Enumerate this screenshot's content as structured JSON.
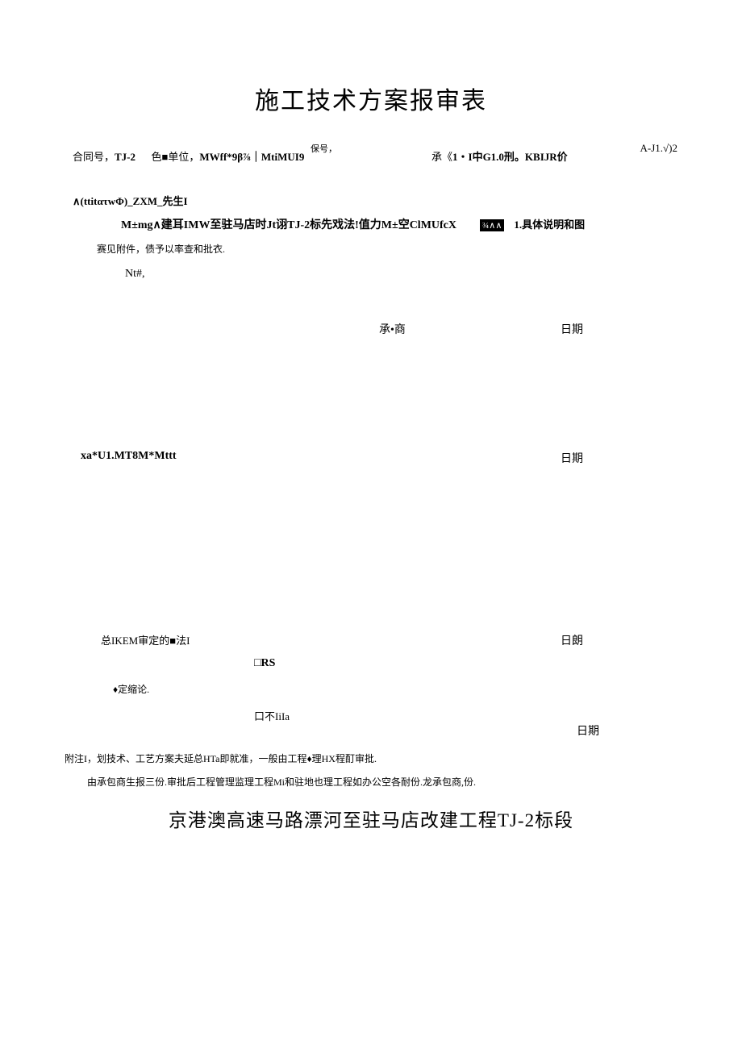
{
  "title": "施工技术方案报审表",
  "top_code": "A-J1.√)2",
  "meta": {
    "contract_label": "合同号，",
    "contract_no": "TJ-2",
    "unit_label": "色■单位，",
    "unit_value": "MWff*9β⅞｜MtiMUI9",
    "bao_label": "保号，",
    "cheng_label": "承《",
    "cheng_value": "1・I中G1.0刑。KBIJR价"
  },
  "addr_line": "∧(ttitατwΦ)_ZXM_先生I",
  "proj_line": "M±mg∧建耳IMW至驻马店时Jt诩TJ-2标先戏法!值力M±空ClMUfcX",
  "badge": "¾∧∧",
  "desc_tail": "1.具体说明和图",
  "attach_line": "赛见附件，债予以率查和批衣.",
  "nt_line": "Nt#,",
  "sig1": {
    "label": "承•商",
    "date": "日期"
  },
  "sig2": {
    "date": "日期"
  },
  "xa_line": "xa*U1.MT8M*Mttt",
  "sig3": {
    "date": "日朗"
  },
  "ikem_line": "总IKEM审定的■法I",
  "rs_line": "□RS",
  "conclusion": "♦定缩论.",
  "iiia_line": "口不IiIa",
  "iiia_date": "日期",
  "note1": "附注I，划技术、工艺方案夫延总HTa即就准，一般由工程♦理HX程酊审批.",
  "note2": "由承包商生报三份.审批后工程管理监理工程Mi和驻地也理工程如办公空各耐份.龙承包商,份.",
  "footer_title": "京港澳高速马路漂河至驻马店改建工程TJ-2标段"
}
